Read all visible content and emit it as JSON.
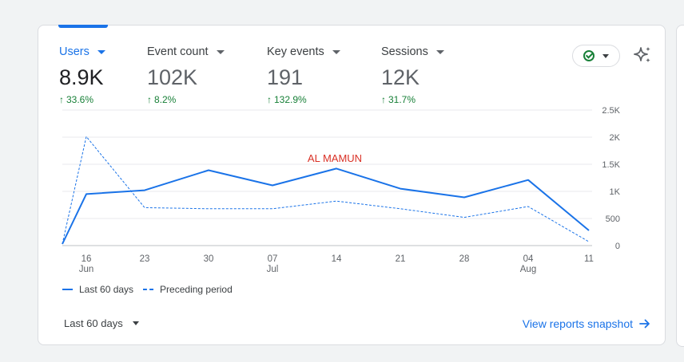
{
  "metrics": [
    {
      "label": "Users",
      "value": "8.9K",
      "change": "33.6%",
      "active": true
    },
    {
      "label": "Event count",
      "value": "102K",
      "change": "8.2%",
      "active": false
    },
    {
      "label": "Key events",
      "value": "191",
      "change": "132.9%",
      "active": false
    },
    {
      "label": "Sessions",
      "value": "12K",
      "change": "31.7%",
      "active": false
    }
  ],
  "status_icon": "check-circle-icon",
  "sparkle_icon": "sparkle-icon",
  "watermark": "AL MAMUN",
  "colors": {
    "accent": "#1a73e8",
    "positive": "#188038",
    "watermark": "#d93025"
  },
  "chart_data": {
    "type": "line",
    "x": [
      "Jun 13",
      "Jun 16",
      "Jun 23",
      "Jun 30",
      "Jul 07",
      "Jul 14",
      "Jul 21",
      "Jul 28",
      "Aug 04",
      "Aug 11"
    ],
    "x_tick_labels": [
      {
        "day": "16",
        "month": "Jun"
      },
      {
        "day": "23",
        "month": ""
      },
      {
        "day": "30",
        "month": ""
      },
      {
        "day": "07",
        "month": "Jul"
      },
      {
        "day": "14",
        "month": ""
      },
      {
        "day": "21",
        "month": ""
      },
      {
        "day": "28",
        "month": ""
      },
      {
        "day": "04",
        "month": "Aug"
      },
      {
        "day": "11",
        "month": ""
      }
    ],
    "y_tick_labels": [
      "0",
      "500",
      "1K",
      "1.5K",
      "2K",
      "2.5K"
    ],
    "ylim": [
      0,
      2500
    ],
    "grid": true,
    "series": [
      {
        "name": "Last 60 days",
        "style": "solid",
        "values": [
          30,
          950,
          1020,
          1390,
          1110,
          1420,
          1050,
          890,
          1210,
          280
        ]
      },
      {
        "name": "Preceding period",
        "style": "dashed",
        "values": [
          30,
          2010,
          700,
          680,
          680,
          820,
          680,
          520,
          720,
          70
        ]
      }
    ],
    "legend": "bottom-left"
  },
  "footer": {
    "date_range": "Last 60 days",
    "view_link": "View reports snapshot"
  }
}
